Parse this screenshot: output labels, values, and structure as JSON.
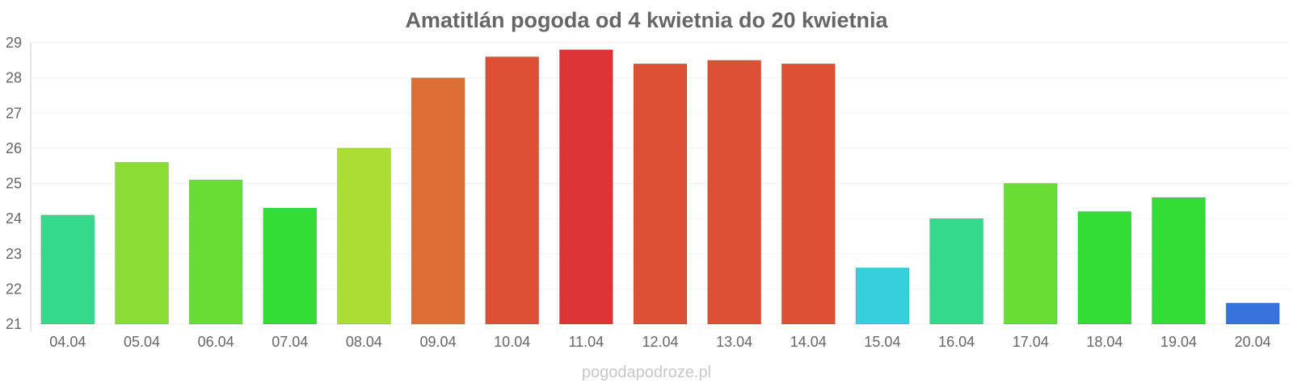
{
  "chart_data": {
    "type": "bar",
    "title": "Amatitlán pogoda od 4 kwietnia do 20 kwietnia",
    "categories": [
      "04.04",
      "05.04",
      "06.04",
      "07.04",
      "08.04",
      "09.04",
      "10.04",
      "11.04",
      "12.04",
      "13.04",
      "14.04",
      "15.04",
      "16.04",
      "17.04",
      "18.04",
      "19.04",
      "20.04"
    ],
    "values": [
      24.1,
      25.6,
      25.1,
      24.3,
      26.0,
      28.0,
      28.6,
      28.8,
      28.4,
      28.5,
      28.4,
      22.6,
      24.0,
      25.0,
      24.2,
      24.6,
      21.6
    ],
    "colors": [
      "#36d98c",
      "#8bdd36",
      "#6adc36",
      "#34dc36",
      "#abdd34",
      "#dd6f36",
      "#dd5036",
      "#dd3436",
      "#dd5036",
      "#dd5036",
      "#dd5036",
      "#36d0dd",
      "#36d98c",
      "#6adc36",
      "#34dc36",
      "#34dc36",
      "#3673dd"
    ],
    "ylim": [
      21,
      29
    ],
    "yticks": [
      "21",
      "22",
      "23",
      "24",
      "25",
      "26",
      "27",
      "28",
      "29"
    ],
    "xlabel": "",
    "ylabel": "",
    "grid": true,
    "watermark": "pogodapodroze.pl"
  }
}
